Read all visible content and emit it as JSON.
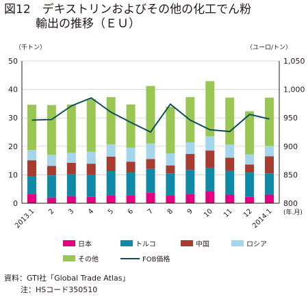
{
  "title": {
    "line1": "図12　デキストリンおよびその他の化工でん粉",
    "line2": "輸出の推移（ＥＵ）"
  },
  "source": {
    "line1": "資料：GTI社「Global Trade Atlas」",
    "line2": "注：HSコード350510"
  },
  "chart_data": {
    "type": "bar",
    "stacked": true,
    "categories": [
      "2013.1",
      "2",
      "3",
      "4",
      "5",
      "6",
      "7",
      "8",
      "9",
      "10",
      "11",
      "12",
      "2014.1"
    ],
    "xunit": "(年.月)",
    "left_axis": {
      "label": "（千トン）",
      "ylim": [
        0,
        50
      ],
      "ticks": [
        "0",
        "10",
        "20",
        "30",
        "40",
        "50"
      ]
    },
    "right_axis": {
      "label": "（ユーロ/トン）",
      "ylim": [
        800,
        1050
      ],
      "ticks": [
        "800",
        "850",
        "900",
        "950",
        "1,000",
        "1,050"
      ]
    },
    "series": [
      {
        "name": "日本",
        "type": "bar",
        "color": "#e4007f",
        "values": [
          3.3,
          2.0,
          2.5,
          2.2,
          2.8,
          2.8,
          3.8,
          2.8,
          3.3,
          4.2,
          3.0,
          2.2,
          3.0
        ]
      },
      {
        "name": "トルコ",
        "type": "bar",
        "color": "#0f8aa6",
        "values": [
          6.2,
          7.8,
          7.7,
          7.7,
          8.5,
          8.0,
          8.3,
          7.7,
          8.4,
          8.2,
          8.4,
          8.6,
          7.5
        ]
      },
      {
        "name": "中国",
        "type": "bar",
        "color": "#a63c2f",
        "values": [
          5.6,
          3.3,
          4.0,
          4.0,
          5.1,
          3.8,
          3.4,
          2.8,
          5.6,
          6.1,
          4.6,
          2.8,
          6.0
        ]
      },
      {
        "name": "ロシア",
        "type": "bar",
        "color": "#a5d5ea",
        "values": [
          3.6,
          3.9,
          3.5,
          4.2,
          4.3,
          4.9,
          5.5,
          4.2,
          4.1,
          5.0,
          4.6,
          3.6,
          3.7
        ]
      },
      {
        "name": "その他",
        "type": "bar",
        "color": "#9ac654",
        "values": [
          15.9,
          17.5,
          17.0,
          18.5,
          16.6,
          15.2,
          20.2,
          16.4,
          15.9,
          19.4,
          16.5,
          15.1,
          16.9
        ]
      },
      {
        "name": "FOB価格",
        "type": "line",
        "axis": "right",
        "color": "#0d4d5c",
        "values": [
          946,
          947,
          971,
          985,
          960,
          942,
          925,
          974,
          946,
          929,
          926,
          956,
          948
        ]
      }
    ]
  }
}
